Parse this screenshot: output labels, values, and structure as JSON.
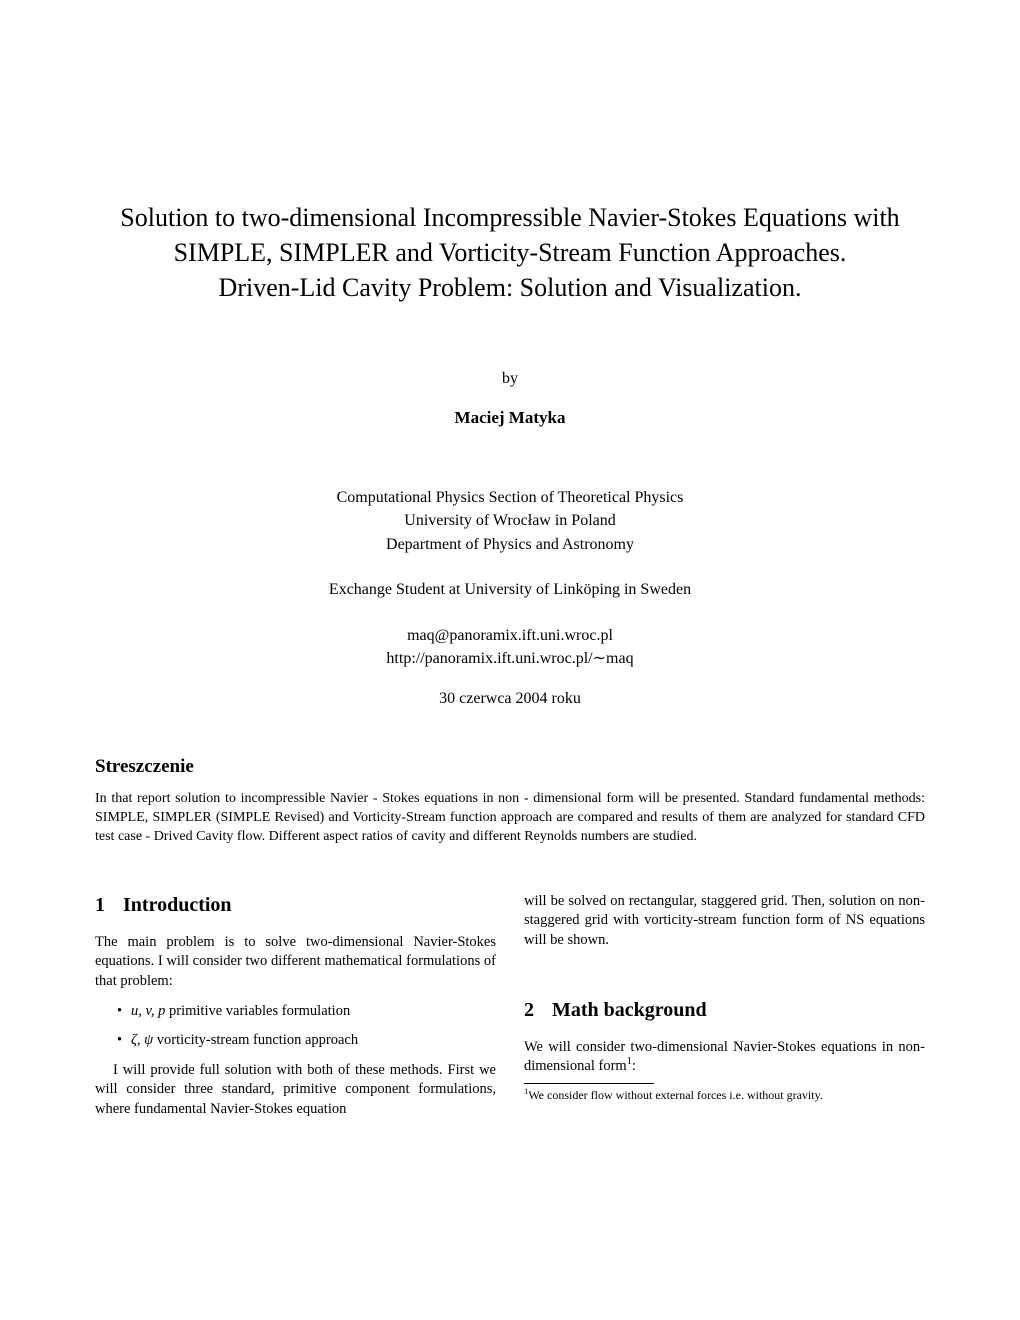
{
  "title_line1": "Solution to two-dimensional Incompressible Navier-Stokes Equations with",
  "title_line2": "SIMPLE, SIMPLER and Vorticity-Stream Function Approaches.",
  "title_line3": "Driven-Lid Cavity Problem: Solution and Visualization.",
  "by_label": "by",
  "author": "Maciej Matyka",
  "affiliation_line1": "Computational Physics Section of Theoretical Physics",
  "affiliation_line2": "University of Wrocław in Poland",
  "affiliation_line3": "Department of Physics and Astronomy",
  "exchange": "Exchange Student at University of Linköping in Sweden",
  "email": "maq@panoramix.ift.uni.wroc.pl",
  "url": "http://panoramix.ift.uni.wroc.pl/∼maq",
  "date": "30 czerwca 2004 roku",
  "abstract_title": "Streszczenie",
  "abstract_text": "In that report solution to incompressible Navier - Stokes equations in non - dimensional form will be presented. Standard fundamental methods: SIMPLE, SIMPLER (SIMPLE Revised) and Vorticity-Stream function approach are compared and results of them are analyzed for standard CFD test case - Drived Cavity flow. Different aspect ratios of cavity and different Reynolds numbers are studied.",
  "section1_num": "1",
  "section1_title": "Introduction",
  "intro_para1": "The main problem is to solve two-dimensional Navier-Stokes equations. I will consider two different mathematical formulations of that problem:",
  "bullet1_prefix": "u, v, p",
  "bullet1_rest": " primitive variables formulation",
  "bullet2_prefix": "ζ, ψ",
  "bullet2_rest": " vorticity-stream function approach",
  "intro_para2": "I will provide full solution with both of these methods. First we will consider three standard, primitive component formulations, where fundamental Navier-Stokes equation",
  "col_right_top": "will be solved on rectangular, staggered grid. Then, solution on non-staggered grid with vorticity-stream function form of NS equations will be shown.",
  "section2_num": "2",
  "section2_title": "Math background",
  "math_para_pre": "We will consider two-dimensional Navier-Stokes equations in non-dimensional form",
  "math_para_sup": "1",
  "math_para_post": ":",
  "footnote_sup": "1",
  "footnote_text": "We consider flow without external forces i.e. without gravity."
}
